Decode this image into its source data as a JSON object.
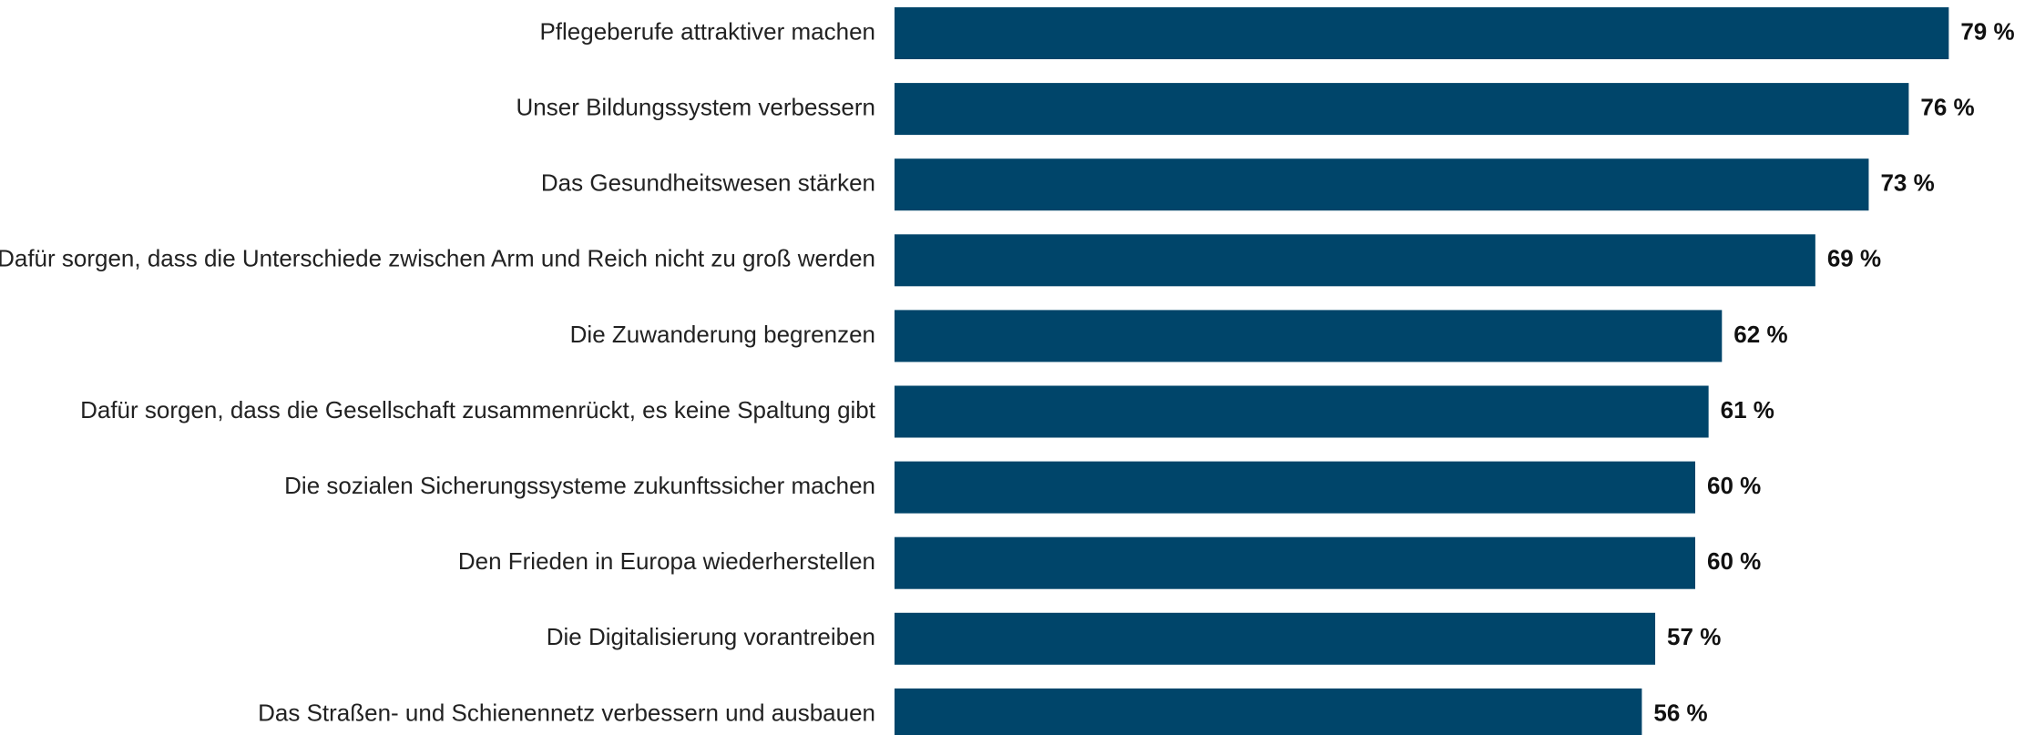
{
  "chart_data": {
    "type": "bar",
    "orientation": "horizontal",
    "categories": [
      "Pflegeberufe attraktiver machen",
      "Unser Bildungssystem verbessern",
      "Das Gesundheitswesen stärken",
      "Dafür sorgen, dass die Unterschiede zwischen Arm und Reich nicht zu groß werden",
      "Die Zuwanderung begrenzen",
      "Dafür sorgen, dass die Gesellschaft zusammenrückt, es keine Spaltung gibt",
      "Die sozialen Sicherungssysteme zukunftssicher machen",
      "Den Frieden in Europa wiederherstellen",
      "Die Digitalisierung vorantreiben",
      "Das Straßen- und Schienennetz verbessern und ausbauen"
    ],
    "values": [
      79,
      76,
      73,
      69,
      62,
      61,
      60,
      60,
      57,
      56
    ],
    "value_labels": [
      "79 %",
      "76 %",
      "73 %",
      "69 %",
      "62 %",
      "61 %",
      "60 %",
      "60 %",
      "57 %",
      "56 %"
    ],
    "color": "#00456a"
  }
}
